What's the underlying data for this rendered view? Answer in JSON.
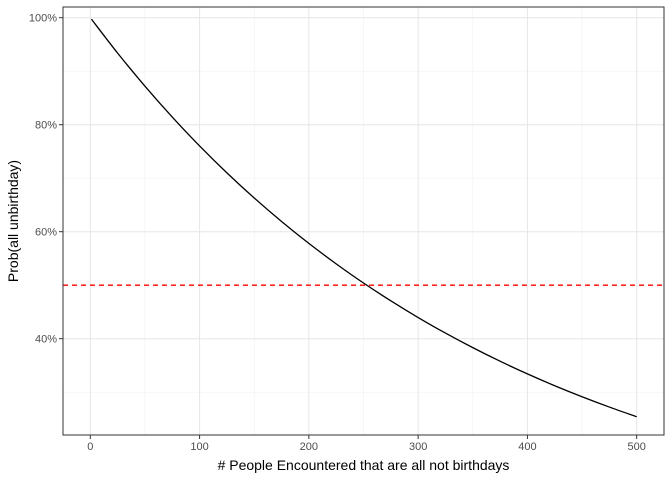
{
  "chart_data": {
    "type": "line",
    "xlabel": "# People Encountered that are all not birthdays",
    "ylabel": "Prob(all unbirthday)",
    "xlim": [
      -25,
      525
    ],
    "ylim": [
      0.22,
      1.02
    ],
    "x_ticks": [
      0,
      100,
      200,
      300,
      400,
      500
    ],
    "x_tick_labels": [
      "0",
      "100",
      "200",
      "300",
      "400",
      "500"
    ],
    "y_ticks": [
      0.4,
      0.6,
      0.8,
      1.0
    ],
    "y_tick_labels": [
      "40%",
      "60%",
      "80%",
      "100%"
    ],
    "grid": true,
    "series": [
      {
        "color": "#000000",
        "x": [
          1,
          25,
          50,
          75,
          100,
          125,
          150,
          175,
          200,
          225,
          250,
          275,
          300,
          325,
          350,
          375,
          400,
          425,
          450,
          475,
          500
        ],
        "y": [
          0.9973,
          0.9338,
          0.872,
          0.8142,
          0.7603,
          0.71,
          0.663,
          0.6191,
          0.5781,
          0.5399,
          0.5041,
          0.4708,
          0.4396,
          0.4105,
          0.3833,
          0.3579,
          0.3342,
          0.3121,
          0.2915,
          0.2722,
          0.2541
        ]
      }
    ],
    "reference_lines": [
      {
        "orientation": "horizontal",
        "y": 0.5,
        "color": "#ff0000",
        "style": "dashed"
      }
    ]
  }
}
